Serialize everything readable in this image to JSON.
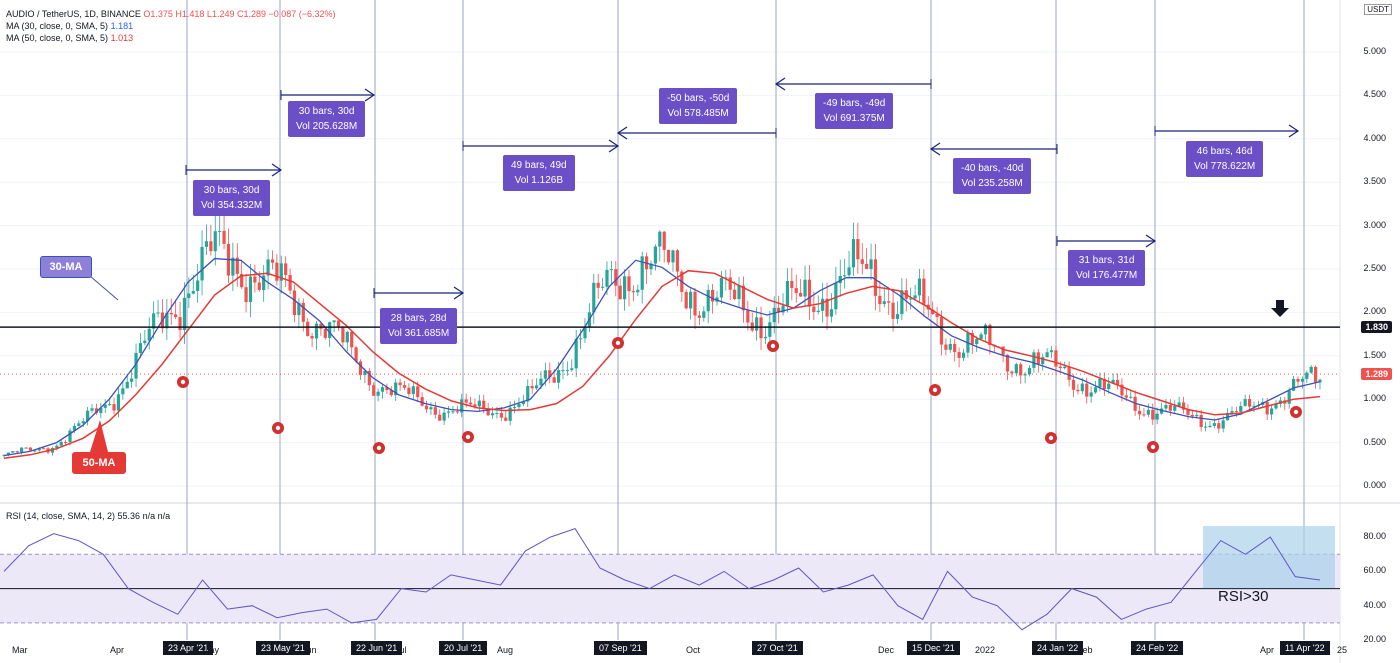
{
  "legend": {
    "symbol": "AUDIO / TetherUS, 1D, BINANCE",
    "ohlc": "O1.375  H1.418  L1.249  C1.289  −0.087 (−6.32%)",
    "ma30": "MA (30, close, 0, SMA, 5)",
    "ma30_value": "1.181",
    "ma50": "MA (50, close, 0, SMA, 5)",
    "ma50_value": "1.013",
    "rsi": "RSI (14, close, SMA, 14, 2)  55.36  n/a  n/a"
  },
  "currency_badge": "USDT",
  "measures": [
    {
      "bars": "30 bars, 30d",
      "vol": "Vol 354.332M"
    },
    {
      "bars": "30 bars, 30d",
      "vol": "Vol 205.628M"
    },
    {
      "bars": "28 bars, 28d",
      "vol": "Vol 361.685M"
    },
    {
      "bars": "49 bars, 49d",
      "vol": "Vol 1.126B"
    },
    {
      "bars": "-50 bars, -50d",
      "vol": "Vol 578.485M"
    },
    {
      "bars": "-49 bars, -49d",
      "vol": "Vol 691.375M"
    },
    {
      "bars": "-40 bars, -40d",
      "vol": "Vol 235.258M"
    },
    {
      "bars": "31 bars, 31d",
      "vol": "Vol 176.477M"
    },
    {
      "bars": "46 bars, 46d",
      "vol": "Vol 778.622M"
    }
  ],
  "annotations": {
    "ma30_label": "30-MA",
    "ma50_label": "50-MA",
    "rsi_note": "RSI>30",
    "support_tag": "1.830",
    "last_price_tag": "1.289"
  },
  "colors": {
    "up": "#26a69a",
    "down": "#ef5350",
    "ma30": "#3f51b5",
    "ma50": "#e53935",
    "measure_box": "#6a4fc7",
    "rsi_line": "#5e56c8",
    "rsi_highlight": "#a9d2ea"
  },
  "chart_data": {
    "type": "candlestick",
    "title": "AUDIO / TetherUS, 1D, BINANCE",
    "price_axis": {
      "ticks": [
        "5.000",
        "4.500",
        "4.000",
        "3.500",
        "3.000",
        "2.500",
        "2.000",
        "1.500",
        "1.000",
        "0.500",
        "0.000"
      ],
      "range": [
        0,
        5.0
      ]
    },
    "rsi_axis": {
      "ticks": [
        "80.00",
        "60.00",
        "40.00",
        "20.00"
      ],
      "range": [
        20,
        90
      ],
      "band": [
        30,
        70
      ],
      "midline": 50
    },
    "x_ticks": [
      "Mar",
      "Apr",
      "23 Apr '21",
      "May",
      "23 May '21",
      "Jun",
      "22 Jun '21",
      "Jul",
      "20 Jul '21",
      "Aug",
      "07 Sep '21",
      "Oct",
      "27 Oct '21",
      "Dec",
      "15 Dec '21",
      "2022",
      "24 Jan '22",
      "Feb",
      "24 Feb '22",
      "Apr",
      "11 Apr '22",
      "25"
    ],
    "highlighted_dates": [
      "23 Apr '21",
      "23 May '21",
      "22 Jun '21",
      "20 Jul '21",
      "07 Sep '21",
      "27 Oct '21",
      "15 Dec '21",
      "24 Jan '22",
      "24 Feb '22",
      "11 Apr '22"
    ],
    "support_level": 1.83,
    "last_price": 1.289,
    "series": [
      {
        "name": "MA (30, close, 0, SMA, 5)",
        "values": [
          0.35,
          0.4,
          0.5,
          0.7,
          1.0,
          1.4,
          1.9,
          2.35,
          2.62,
          2.6,
          2.35,
          2.15,
          1.9,
          1.55,
          1.25,
          1.05,
          0.95,
          0.88,
          0.86,
          0.9,
          1.0,
          1.35,
          1.8,
          2.3,
          2.6,
          2.52,
          2.3,
          2.15,
          2.05,
          1.97,
          2.05,
          2.25,
          2.4,
          2.4,
          2.2,
          1.95,
          1.73,
          1.6,
          1.5,
          1.43,
          1.33,
          1.22,
          1.08,
          0.95,
          0.87,
          0.8,
          0.76,
          0.83,
          0.98,
          1.13,
          1.2
        ]
      },
      {
        "name": "MA (50, close, 0, SMA, 5)",
        "values": [
          0.32,
          0.36,
          0.43,
          0.55,
          0.75,
          1.05,
          1.4,
          1.8,
          2.2,
          2.42,
          2.45,
          2.35,
          2.1,
          1.85,
          1.55,
          1.3,
          1.12,
          0.98,
          0.9,
          0.87,
          0.88,
          0.95,
          1.15,
          1.5,
          1.92,
          2.3,
          2.48,
          2.45,
          2.3,
          2.15,
          2.05,
          2.1,
          2.22,
          2.3,
          2.25,
          2.08,
          1.88,
          1.7,
          1.57,
          1.5,
          1.42,
          1.32,
          1.2,
          1.08,
          0.98,
          0.88,
          0.82,
          0.84,
          0.92,
          1.0,
          1.03
        ]
      },
      {
        "name": "RSI (14, close, SMA, 14, 2)",
        "values": [
          60,
          75,
          82,
          78,
          70,
          50,
          42,
          35,
          55,
          38,
          40,
          33,
          36,
          38,
          30,
          32,
          50,
          48,
          58,
          55,
          52,
          72,
          80,
          85,
          62,
          55,
          50,
          58,
          52,
          60,
          50,
          55,
          62,
          48,
          52,
          58,
          40,
          32,
          60,
          45,
          40,
          26,
          35,
          50,
          45,
          32,
          38,
          42,
          60,
          78,
          70,
          80,
          57,
          55
        ]
      }
    ]
  }
}
